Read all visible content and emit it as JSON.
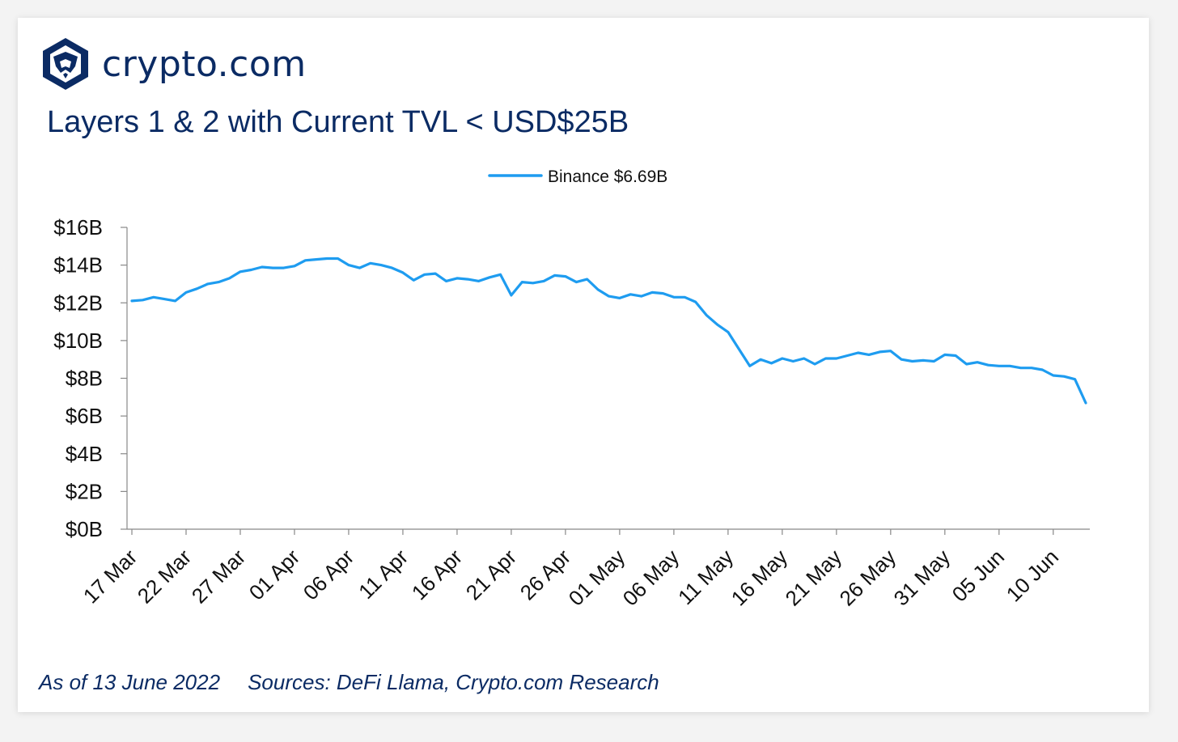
{
  "brand": {
    "name": "crypto.com",
    "primary_color": "#0b2b64",
    "logo_icon": "lion-shield-icon"
  },
  "header": {
    "title": "Layers 1 & 2 with Current TVL < USD$25B"
  },
  "footer": {
    "as_of": "As of 13 June 2022",
    "sources": "Sources: DeFi Llama, Crypto.com Research"
  },
  "chart_data": {
    "type": "line",
    "title": "Layers 1 & 2 with Current TVL < USD$25B",
    "xlabel": "",
    "ylabel": "",
    "ylim": [
      0,
      16
    ],
    "y_ticks": [
      0,
      2,
      4,
      6,
      8,
      10,
      12,
      14,
      16
    ],
    "y_tick_labels": [
      "$0B",
      "$2B",
      "$4B",
      "$6B",
      "$8B",
      "$10B",
      "$12B",
      "$14B",
      "$16B"
    ],
    "x_start": "2022-03-17",
    "x_tick_labels": [
      "17 Mar",
      "22 Mar",
      "27 Mar",
      "01 Apr",
      "06 Apr",
      "11 Apr",
      "16 Apr",
      "21 Apr",
      "26 Apr",
      "01 May",
      "06 May",
      "11 May",
      "16 May",
      "21 May",
      "26 May",
      "31 May",
      "05 Jun",
      "10 Jun"
    ],
    "legend_position": "top-center",
    "grid": false,
    "series": [
      {
        "name": "Binance $6.69B",
        "color": "#1e9cf0",
        "values": [
          12.1,
          12.15,
          12.3,
          12.2,
          12.1,
          12.55,
          12.75,
          13.0,
          13.1,
          13.3,
          13.65,
          13.75,
          13.9,
          13.85,
          13.85,
          13.95,
          14.25,
          14.3,
          14.35,
          14.35,
          14.0,
          13.85,
          14.1,
          14.0,
          13.85,
          13.6,
          13.2,
          13.5,
          13.55,
          13.15,
          13.3,
          13.25,
          13.15,
          13.35,
          13.5,
          12.4,
          13.1,
          13.05,
          13.15,
          13.45,
          13.4,
          13.1,
          13.25,
          12.7,
          12.35,
          12.25,
          12.45,
          12.35,
          12.55,
          12.5,
          12.3,
          12.3,
          12.05,
          11.35,
          10.85,
          10.45,
          9.55,
          8.65,
          9.0,
          8.8,
          9.05,
          8.9,
          9.05,
          8.75,
          9.05,
          9.05,
          9.2,
          9.35,
          9.25,
          9.4,
          9.45,
          9.0,
          8.9,
          8.95,
          8.9,
          9.25,
          9.2,
          8.75,
          8.85,
          8.7,
          8.65,
          8.65,
          8.55,
          8.55,
          8.45,
          8.15,
          8.1,
          7.95,
          6.69
        ]
      }
    ]
  }
}
